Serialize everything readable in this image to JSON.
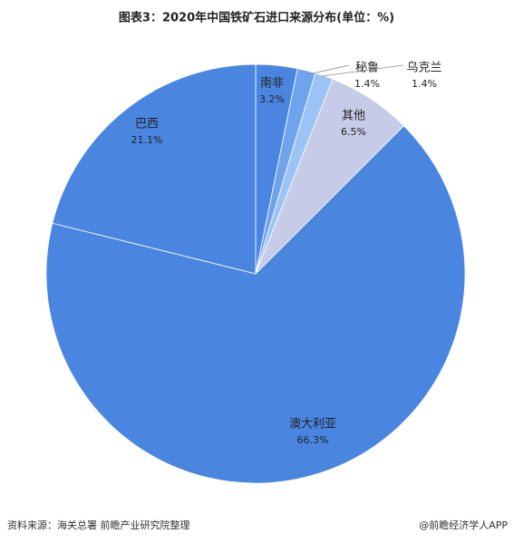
{
  "chart_data": {
    "type": "pie",
    "title": "图表3：2020年中国铁矿石进口来源分布(单位：%)",
    "categories": [
      "南非",
      "秘鲁",
      "乌克兰",
      "其他",
      "澳大利亚",
      "巴西"
    ],
    "values": [
      3.2,
      1.4,
      1.4,
      6.5,
      66.3,
      21.1
    ],
    "value_labels": [
      "3.2%",
      "1.4%",
      "1.4%",
      "6.5%",
      "66.3%",
      "21.1%"
    ],
    "colors": [
      "#4a86e0",
      "#6fa3ec",
      "#9cc3f5",
      "#c6cbe8",
      "#4a86e0",
      "#4a86e0"
    ],
    "source": "资料来源：海关总署 前瞻产业研究院整理",
    "credit": "@前瞻经济学人APP"
  }
}
